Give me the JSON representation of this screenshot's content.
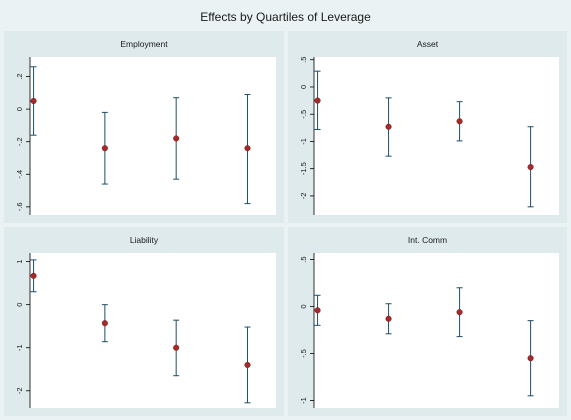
{
  "chart_data": {
    "title": "Effects by Quartiles of Leverage",
    "type": "scatter",
    "panels": [
      {
        "title": "Employment",
        "ylim": [
          -0.65,
          0.32
        ],
        "yticks": [
          0.2,
          0,
          -0.2,
          -0.4,
          -0.6
        ],
        "yticklabels": [
          ".2",
          "0",
          "-.2",
          "-.4",
          "-.6"
        ],
        "x": [
          1,
          2,
          3,
          4
        ],
        "estimates": [
          0.05,
          -0.24,
          -0.18,
          -0.24
        ],
        "ci_lower": [
          -0.16,
          -0.46,
          -0.43,
          -0.58
        ],
        "ci_upper": [
          0.26,
          -0.02,
          0.07,
          0.09
        ]
      },
      {
        "title": "Asset",
        "ylim": [
          -2.35,
          0.55
        ],
        "yticks": [
          0.5,
          0,
          -0.5,
          -1,
          -1.5,
          -2
        ],
        "yticklabels": [
          ".5",
          "0",
          "-.5",
          "-1",
          "-1.5",
          "-2"
        ],
        "x": [
          1,
          2,
          3,
          4
        ],
        "estimates": [
          -0.25,
          -0.73,
          -0.63,
          -1.47
        ],
        "ci_lower": [
          -0.78,
          -1.27,
          -0.99,
          -2.2
        ],
        "ci_upper": [
          0.29,
          -0.2,
          -0.27,
          -0.73
        ]
      },
      {
        "title": "Liability",
        "ylim": [
          -2.4,
          1.2
        ],
        "yticks": [
          1,
          0,
          -1,
          -2
        ],
        "yticklabels": [
          "1",
          "0",
          "-1",
          "-2"
        ],
        "x": [
          1,
          2,
          3,
          4
        ],
        "estimates": [
          0.67,
          -0.43,
          -1.0,
          -1.4
        ],
        "ci_lower": [
          0.3,
          -0.86,
          -1.65,
          -2.28
        ],
        "ci_upper": [
          1.04,
          0.0,
          -0.36,
          -0.52
        ]
      },
      {
        "title": "Int. Comm",
        "ylim": [
          -1.08,
          0.57
        ],
        "yticks": [
          0.5,
          0,
          -0.5,
          -1
        ],
        "yticklabels": [
          ".5",
          "0",
          "-.5",
          "-1"
        ],
        "x": [
          1,
          2,
          3,
          4
        ],
        "estimates": [
          -0.04,
          -0.13,
          -0.06,
          -0.55
        ],
        "ci_lower": [
          -0.2,
          -0.29,
          -0.32,
          -0.95
        ],
        "ci_upper": [
          0.12,
          0.03,
          0.2,
          -0.15
        ]
      }
    ],
    "colors": {
      "marker": "#a52a2a",
      "ci": "#1c4e68",
      "axis": "#000000",
      "plot_bg": "#ffffff",
      "panel_bg": "#dfeaed",
      "figure_bg": "#eaf2f3"
    },
    "grid": false,
    "legend": "none"
  }
}
